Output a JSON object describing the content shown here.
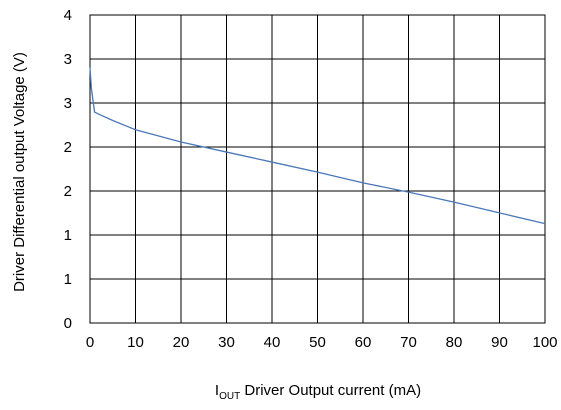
{
  "chart_data": {
    "type": "line",
    "xlabel_prefix": "I",
    "xlabel_subscript": "OUT",
    "xlabel_rest": " Driver Output current (mA)",
    "ylabel": "Driver Differential output  Voltage (V)",
    "xlim": [
      0,
      100
    ],
    "ylim": [
      0,
      4
    ],
    "x_ticks": [
      0,
      10,
      20,
      30,
      40,
      50,
      60,
      70,
      80,
      90,
      100
    ],
    "y_tick_labels": [
      "0",
      "1",
      "1",
      "2",
      "2",
      "3",
      "3",
      "4"
    ],
    "grid": true,
    "series": [
      {
        "color": "#4a78b8",
        "x": [
          0,
          0.3,
          1,
          2,
          5,
          10,
          20,
          30,
          40,
          50,
          60,
          70,
          80,
          90,
          100
        ],
        "y": [
          3.32,
          3.05,
          2.74,
          2.71,
          2.63,
          2.51,
          2.35,
          2.22,
          2.09,
          1.96,
          1.82,
          1.7,
          1.57,
          1.43,
          1.29
        ]
      }
    ]
  }
}
